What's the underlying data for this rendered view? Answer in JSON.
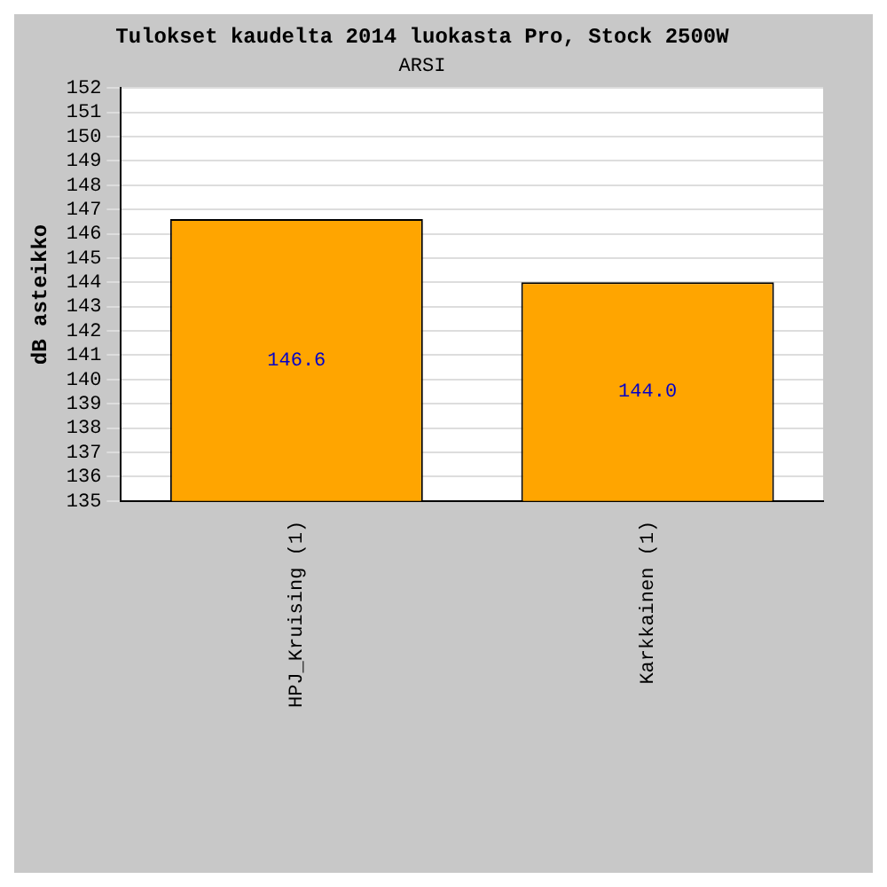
{
  "chart_data": {
    "type": "bar",
    "title": "Tulokset kaudelta 2014 luokasta Pro, Stock 2500W",
    "subtitle": "ARSI",
    "ylabel": "dB asteikko",
    "categories": [
      "HPJ_Kruising (1)",
      "Karkkainen (1)"
    ],
    "values": [
      146.6,
      144.0
    ],
    "value_labels": [
      "146.6",
      "144.0"
    ],
    "color": "#ffa500",
    "ylim": [
      135,
      152
    ],
    "yticks": [
      135,
      136,
      137,
      138,
      139,
      140,
      141,
      142,
      143,
      144,
      145,
      146,
      147,
      148,
      149,
      150,
      151,
      152
    ],
    "grid": "y",
    "legend": false
  }
}
